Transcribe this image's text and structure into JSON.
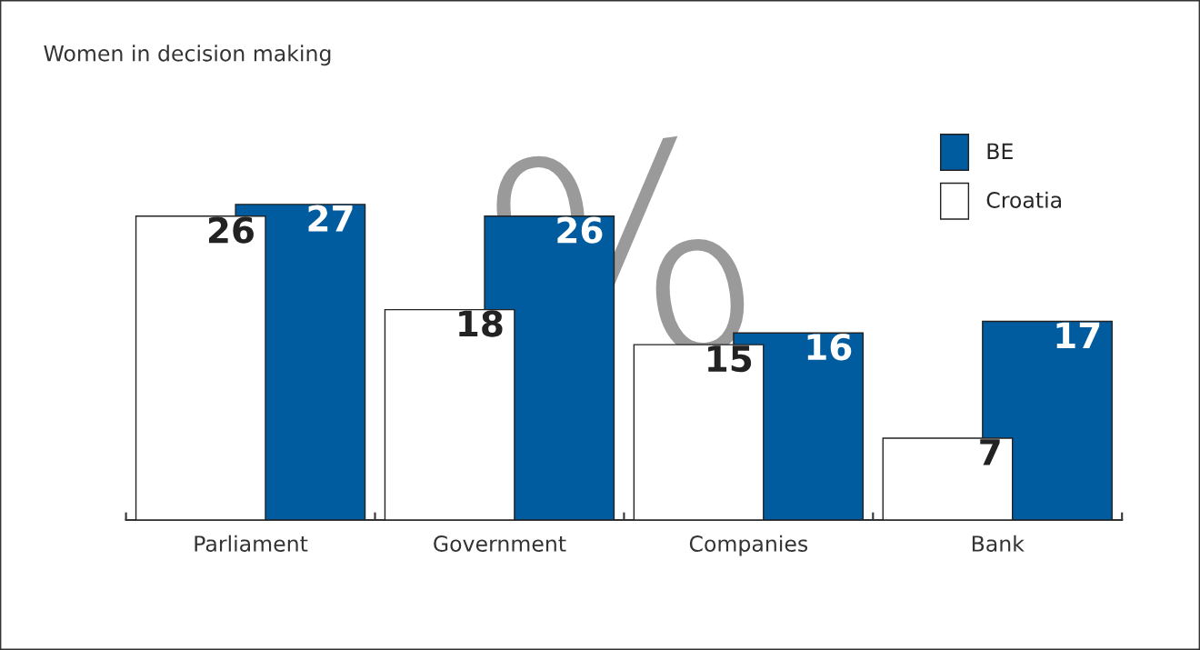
{
  "chart_data": {
    "type": "bar",
    "title": "Women in decision making",
    "categories": [
      "Parliament",
      "Government",
      "Companies",
      "Bank"
    ],
    "series": [
      {
        "name": "Croatia",
        "color": "#ffffff",
        "values": [
          26,
          18,
          15,
          7
        ]
      },
      {
        "name": "BE",
        "color": "#005b9f",
        "values": [
          27,
          26,
          16,
          17
        ]
      }
    ],
    "data_labels": true,
    "legend": "top right",
    "grid": false,
    "annotations": [
      "%"
    ]
  }
}
